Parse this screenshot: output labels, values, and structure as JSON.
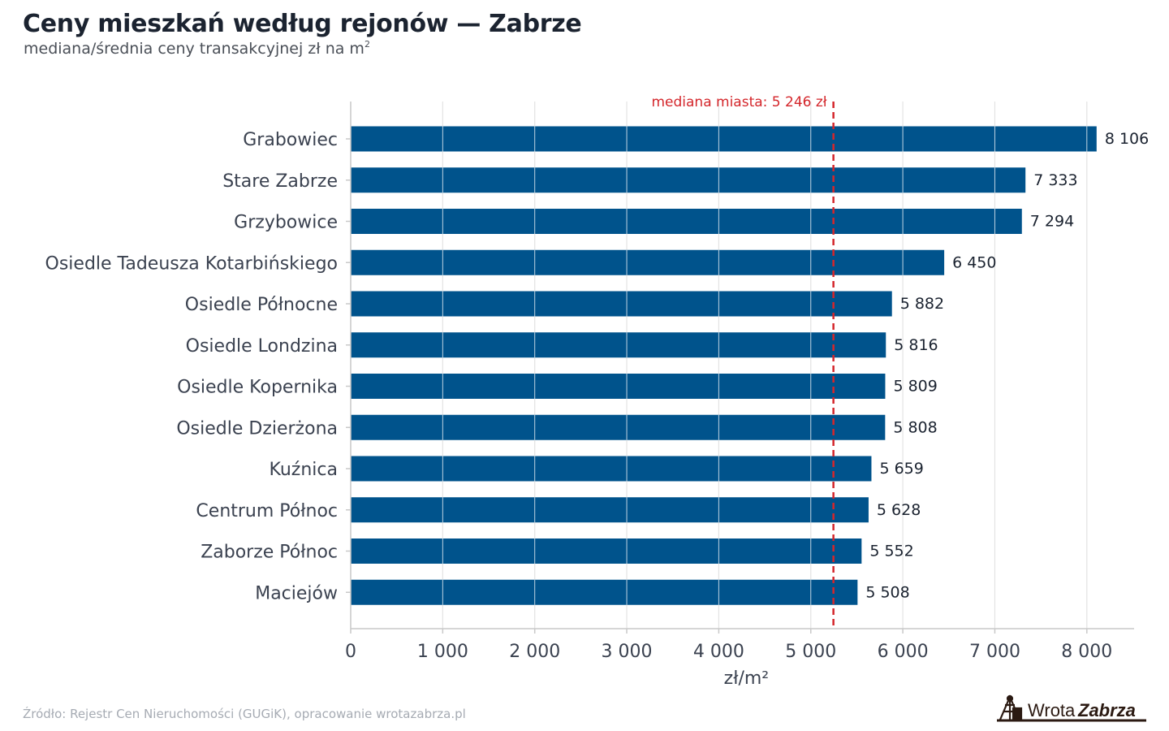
{
  "header": {
    "title": "Ceny mieszkań według rejonów — Zabrze",
    "subtitle": "mediana/średnia ceny transakcyjnej zł na m",
    "subtitle_sup": "2"
  },
  "footer": {
    "source": "Źródło: Rejestr Cen Nieruchomości (GUGiK), opracowanie wrotazabrza.pl",
    "logo_text_1": "Wrota",
    "logo_text_2": "Zabrza"
  },
  "chart_data": {
    "type": "bar",
    "orientation": "horizontal",
    "categories": [
      "Grabowiec",
      "Stare Zabrze",
      "Grzybowice",
      "Osiedle Tadeusza Kotarbińskiego",
      "Osiedle Północne",
      "Osiedle Londzina",
      "Osiedle Kopernika",
      "Osiedle Dzierżona",
      "Kuźnica",
      "Centrum Północ",
      "Zaborze Północ",
      "Maciejów"
    ],
    "values": [
      8106,
      7333,
      7294,
      6450,
      5882,
      5816,
      5809,
      5808,
      5659,
      5628,
      5552,
      5508
    ],
    "value_labels": [
      "8 106",
      "7 333",
      "7 294",
      "6 450",
      "5 882",
      "5 816",
      "5 809",
      "5 808",
      "5 659",
      "5 628",
      "5 552",
      "5 508"
    ],
    "xlabel": "zł/m²",
    "xlim": [
      0,
      8500
    ],
    "xticks": [
      0,
      1000,
      2000,
      3000,
      4000,
      5000,
      6000,
      7000,
      8000
    ],
    "xtick_labels": [
      "0",
      "1 000",
      "2 000",
      "3 000",
      "4 000",
      "5 000",
      "6 000",
      "7 000",
      "8 000"
    ],
    "reference_line": {
      "value": 5246,
      "label": "mediana miasta: 5 246 zł"
    },
    "grid": true,
    "colors": {
      "bar": "#00538c",
      "reference": "#d4262b",
      "grid": "#e3e3e3"
    }
  }
}
